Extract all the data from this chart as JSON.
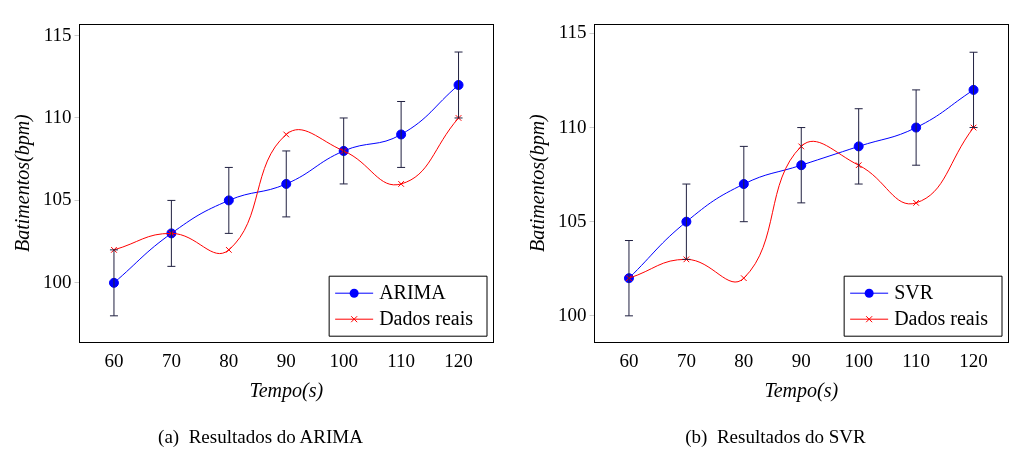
{
  "chart_data": [
    {
      "type": "line",
      "title": "(a)  Resultados do ARIMA",
      "xlabel": "Tempo(s)",
      "ylabel": "Batimentos(bpm)",
      "x": [
        60,
        70,
        80,
        90,
        100,
        110,
        120
      ],
      "xlim": [
        54,
        126
      ],
      "xticks": [
        60,
        70,
        80,
        90,
        100,
        110,
        120
      ],
      "ylim": [
        96.4,
        115.7
      ],
      "yticks": [
        100,
        105,
        110,
        115
      ],
      "grid": false,
      "legend": "bottom right",
      "series": [
        {
          "name": "ARIMA",
          "color": "#0000ff",
          "marker": "circle",
          "values": [
            100,
            103,
            105,
            106,
            108,
            109,
            112
          ],
          "errors": [
            2,
            2,
            2,
            2,
            2,
            2,
            2
          ]
        },
        {
          "name": "Dados reais",
          "color": "#ff0000",
          "marker": "cross",
          "values": [
            102,
            103,
            102,
            109,
            108,
            106,
            110
          ]
        }
      ]
    },
    {
      "type": "line",
      "title": "(b)  Resultados do SVR",
      "xlabel": "Tempo(s)",
      "ylabel": "Batimentos(bpm)",
      "x": [
        60,
        70,
        80,
        90,
        100,
        110,
        120
      ],
      "xlim": [
        54,
        126
      ],
      "xticks": [
        60,
        70,
        80,
        90,
        100,
        110,
        120
      ],
      "ylim": [
        98.6,
        115.5
      ],
      "yticks": [
        100,
        105,
        110,
        115
      ],
      "grid": false,
      "legend": "bottom right",
      "series": [
        {
          "name": "SVR",
          "color": "#0000ff",
          "marker": "circle",
          "values": [
            102,
            105,
            107,
            108,
            109,
            110,
            112
          ],
          "errors": [
            2,
            2,
            2,
            2,
            2,
            2,
            2
          ]
        },
        {
          "name": "Dados reais",
          "color": "#ff0000",
          "marker": "cross",
          "values": [
            102,
            103,
            102,
            109,
            108,
            106,
            110
          ]
        }
      ]
    }
  ]
}
